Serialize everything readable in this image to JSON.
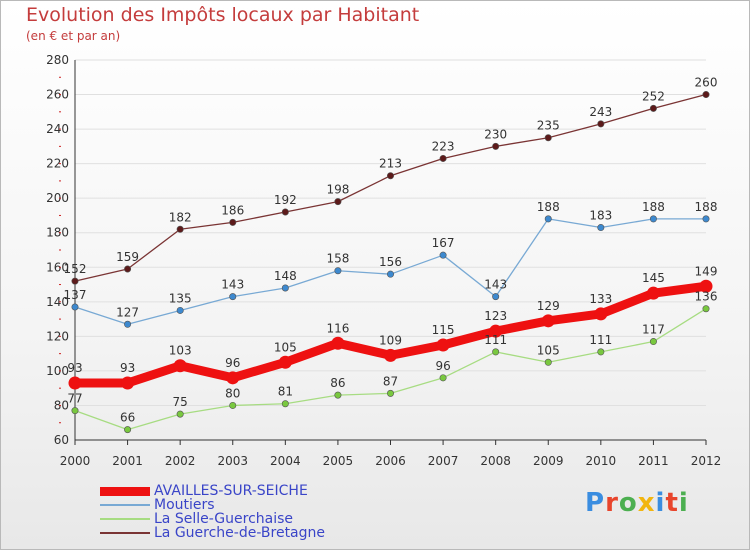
{
  "header": {
    "title": "Evolution des Impôts locaux par Habitant",
    "subtitle": "(en € et par an)"
  },
  "brand": {
    "text": "Proxiti",
    "colors": [
      "#3a8de0",
      "#e8452c",
      "#4caf50",
      "#f2b50f",
      "#3a8de0",
      "#e8452c",
      "#4caf50"
    ]
  },
  "chart_data": {
    "type": "line",
    "title": "Evolution des Impôts locaux par Habitant",
    "subtitle": "(en € et par an)",
    "xlabel": "",
    "ylabel": "",
    "x": [
      "2000",
      "2001",
      "2002",
      "2003",
      "2004",
      "2005",
      "2006",
      "2007",
      "2008",
      "2009",
      "2010",
      "2011",
      "2012"
    ],
    "ylim": [
      60,
      280
    ],
    "yticks": [
      60,
      80,
      100,
      120,
      140,
      160,
      180,
      200,
      220,
      240,
      260,
      280
    ],
    "grid": "horizontal",
    "legend_position": "bottom-left",
    "series": [
      {
        "name": "AVAILLES-SUR-SEICHE",
        "color": "#ee1111",
        "point_color": "#ee1111",
        "emphasis": true,
        "values": [
          93,
          93,
          103,
          96,
          105,
          116,
          109,
          115,
          123,
          129,
          133,
          145,
          149
        ]
      },
      {
        "name": "Moutiers",
        "color": "#78a9d4",
        "point_color": "#3d89cf",
        "emphasis": false,
        "values": [
          137,
          127,
          135,
          143,
          148,
          158,
          156,
          167,
          143,
          188,
          183,
          188,
          188
        ]
      },
      {
        "name": "La Selle-Guerchaise",
        "color": "#a7dc82",
        "point_color": "#79c83f",
        "emphasis": false,
        "values": [
          77,
          66,
          75,
          80,
          81,
          86,
          87,
          96,
          111,
          105,
          111,
          117,
          136
        ]
      },
      {
        "name": "La Guerche-de-Bretagne",
        "color": "#7a3434",
        "point_color": "#5c1a1a",
        "emphasis": false,
        "values": [
          152,
          159,
          182,
          186,
          192,
          198,
          213,
          223,
          230,
          235,
          243,
          252,
          260
        ]
      }
    ]
  }
}
